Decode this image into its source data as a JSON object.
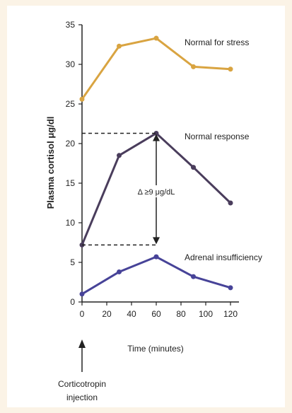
{
  "chart_data": {
    "type": "line",
    "xlabel": "Time (minutes)",
    "ylabel": "Plasma cortisol μg/dl",
    "xlim": [
      0,
      120
    ],
    "ylim": [
      0,
      35
    ],
    "xticks": [
      0,
      20,
      40,
      60,
      80,
      100,
      120
    ],
    "yticks": [
      0,
      5,
      10,
      15,
      20,
      25,
      30,
      35
    ],
    "x": [
      0,
      30,
      60,
      90,
      120
    ],
    "grid": false,
    "legend": "none",
    "series": [
      {
        "name": "Normal for stress",
        "color": "#d9a441",
        "values": [
          25.6,
          32.3,
          33.3,
          29.7,
          29.4
        ]
      },
      {
        "name": "Normal response",
        "color": "#4a3d5c",
        "values": [
          7.2,
          18.5,
          21.3,
          17.0,
          12.5
        ]
      },
      {
        "name": "Adrenal insufficiency",
        "color": "#474398",
        "values": [
          1.0,
          3.8,
          5.7,
          3.2,
          1.8
        ]
      }
    ],
    "annotations": {
      "delta_label": "Δ ≥9 μg/dL",
      "delta_range": [
        7.2,
        21.3
      ],
      "injection_label_line1": "Corticotropin",
      "injection_label_line2": "injection",
      "injection_x": 0
    }
  }
}
